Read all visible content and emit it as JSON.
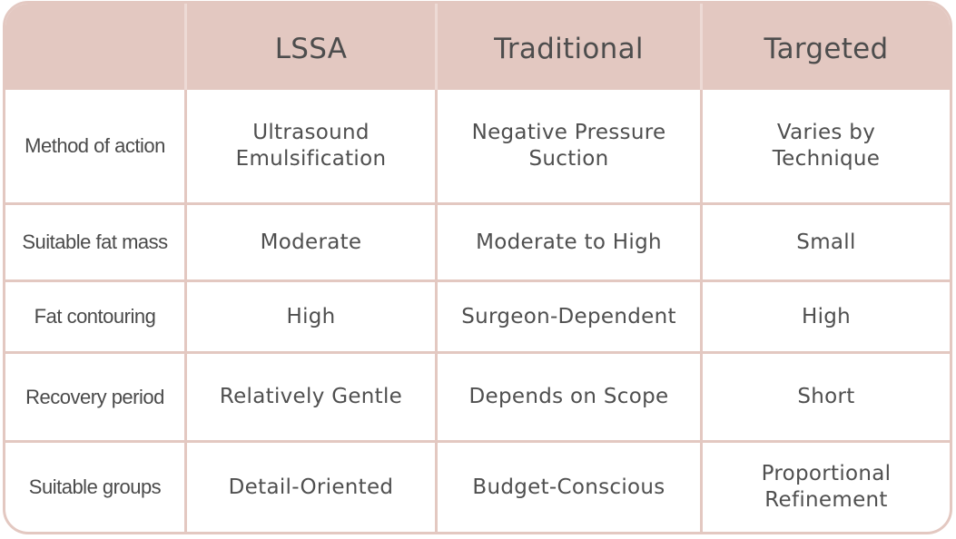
{
  "columns": [
    "",
    "LSSA",
    "Traditional",
    "Targeted"
  ],
  "rows": [
    {
      "label": "Method of action",
      "values": [
        "Ultrasound\nEmulsification",
        "Negative Pressure\nSuction",
        "Varies by\nTechnique"
      ]
    },
    {
      "label": "Suitable fat mass",
      "values": [
        "Moderate",
        "Moderate to High",
        "Small"
      ]
    },
    {
      "label": "Fat contouring",
      "values": [
        "High",
        "Surgeon-Dependent",
        "High"
      ]
    },
    {
      "label": "Recovery period",
      "values": [
        "Relatively Gentle",
        "Depends on Scope",
        "Short"
      ]
    },
    {
      "label": "Suitable groups",
      "values": [
        "Detail-Oriented",
        "Budget-Conscious",
        "Proportional\nRefinement"
      ]
    }
  ],
  "colors": {
    "header_background": "#e3c8c1",
    "border": "#e3c8c1",
    "text": "#4f4f4f"
  }
}
